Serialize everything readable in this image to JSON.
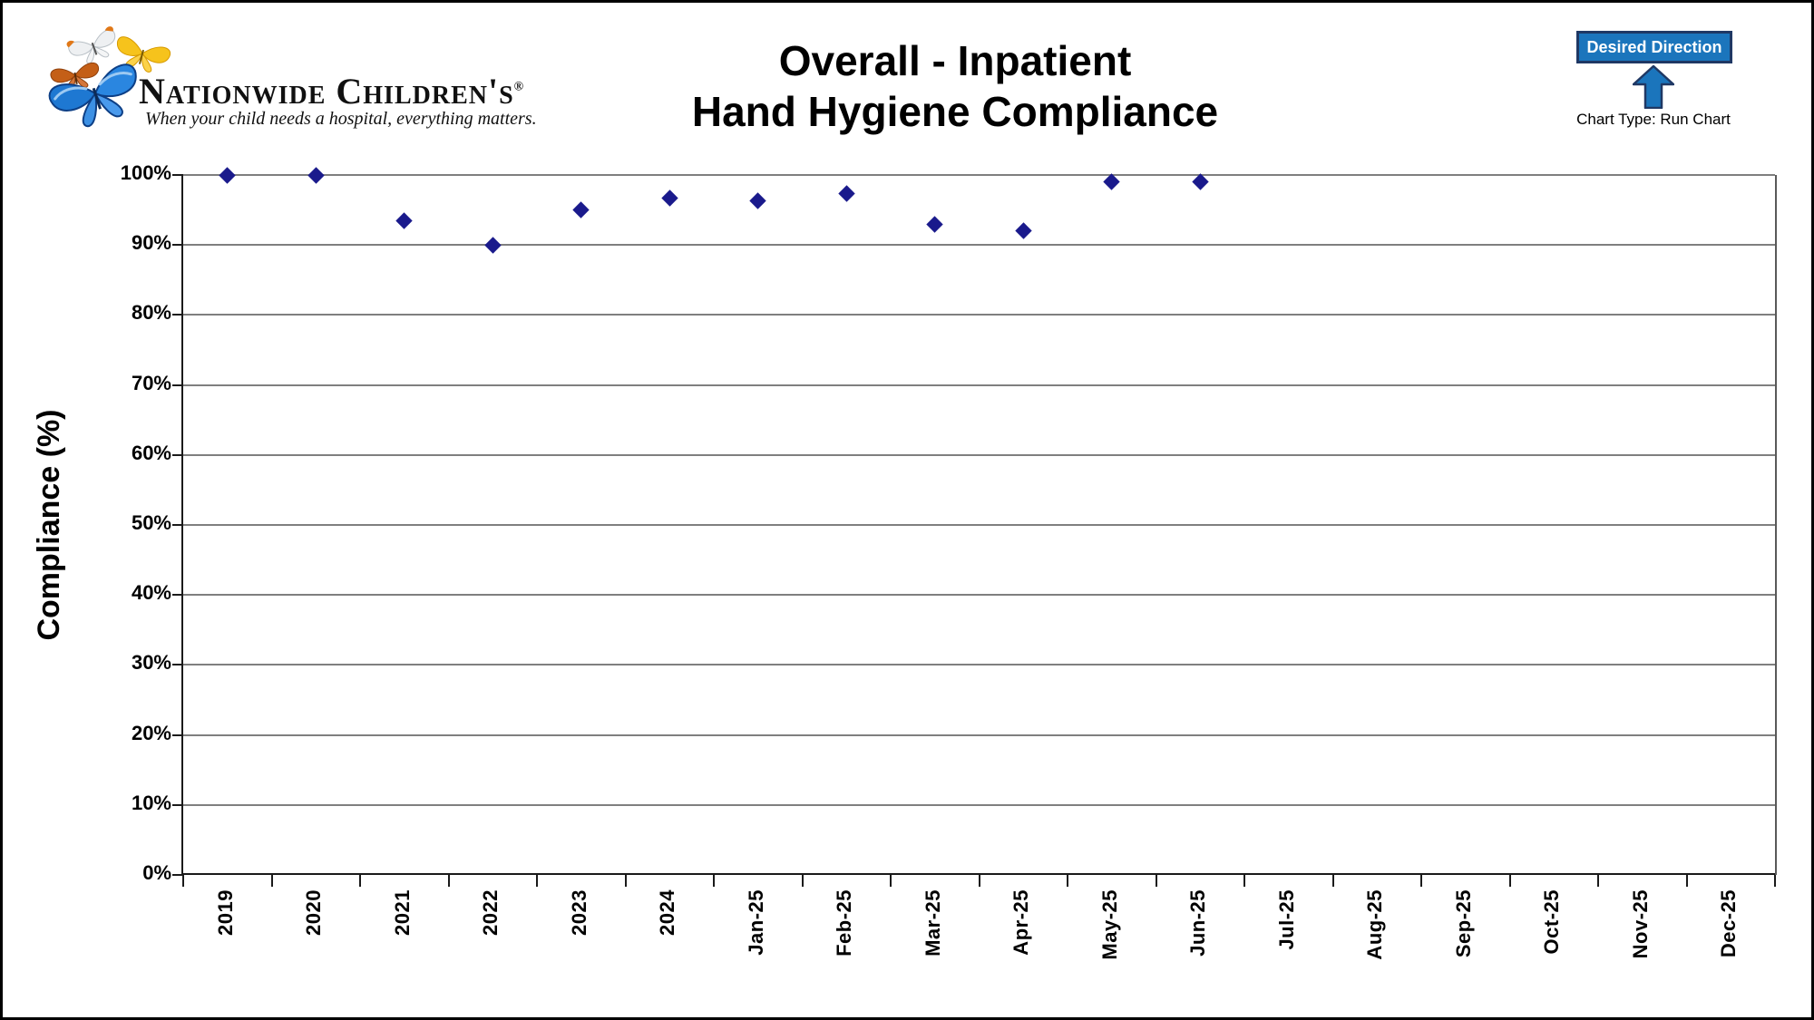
{
  "logo": {
    "name": "Nationwide Children's",
    "registered_mark": "®",
    "tagline": "When your child needs a hospital, everything matters."
  },
  "title": {
    "line1": "Overall - Inpatient",
    "line2": "Hand Hygiene Compliance"
  },
  "desired_direction": {
    "label": "Desired Direction",
    "caption": "Chart Type: Run Chart",
    "arrow": "up-arrow-icon",
    "box_fill": "#1b75bc",
    "box_border": "#1f3864"
  },
  "chart_data": {
    "type": "scatter",
    "title": "Overall - Inpatient Hand Hygiene Compliance",
    "xlabel": "",
    "ylabel": "Compliance (%)",
    "ylim": [
      0,
      100
    ],
    "ytick_interval": 10,
    "ytick_labels": [
      "0%",
      "10%",
      "20%",
      "30%",
      "40%",
      "50%",
      "60%",
      "70%",
      "80%",
      "90%",
      "100%"
    ],
    "grid": true,
    "legend": "none",
    "marker": "diamond",
    "marker_color": "#1a1a8c",
    "gridline_color": "#7f7f7f",
    "categories": [
      "2019",
      "2020",
      "2021",
      "2022",
      "2023",
      "2024",
      "Jan-25",
      "Feb-25",
      "Mar-25",
      "Apr-25",
      "May-25",
      "Jun-25",
      "Jul-25",
      "Aug-25",
      "Sep-25",
      "Oct-25",
      "Nov-25",
      "Dec-25"
    ],
    "values": [
      100,
      100,
      93.5,
      90,
      95,
      96.7,
      96.3,
      97.4,
      93,
      92,
      99,
      99,
      null,
      null,
      null,
      null,
      null,
      null
    ]
  }
}
